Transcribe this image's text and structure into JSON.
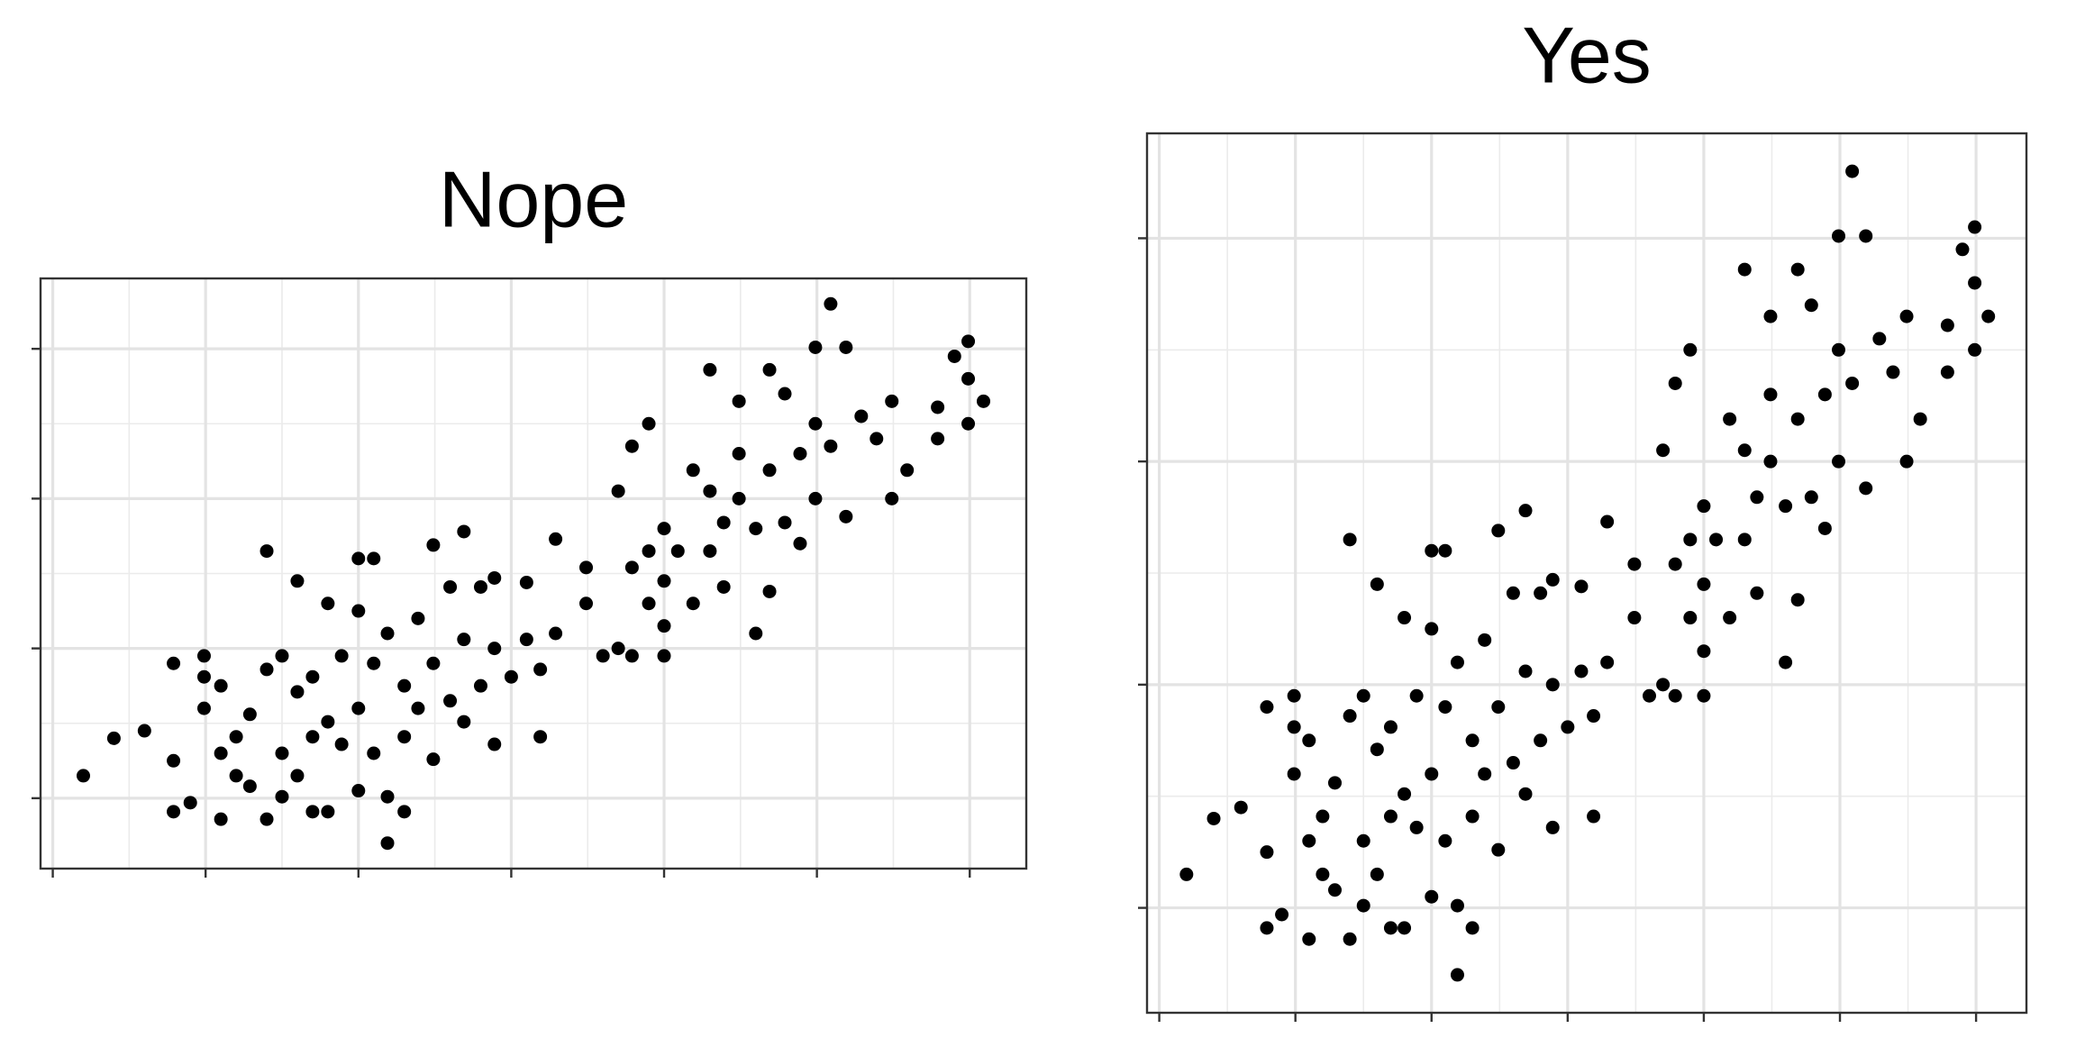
{
  "chart_data": [
    {
      "type": "scatter",
      "title": "Nope",
      "color": "#000000",
      "grid": true,
      "x": [
        0.2,
        0.4,
        0.6,
        0.79,
        0.79,
        0.79,
        0.9,
        0.99,
        0.99,
        0.99,
        1.1,
        1.1,
        1.1,
        1.2,
        1.2,
        1.29,
        1.29,
        1.4,
        1.4,
        1.4,
        1.5,
        1.5,
        1.5,
        1.6,
        1.6,
        1.6,
        1.7,
        1.7,
        1.7,
        1.8,
        1.8,
        1.8,
        1.89,
        1.89,
        2.0,
        2.0,
        2.0,
        2.0,
        2.1,
        2.1,
        2.1,
        2.19,
        2.19,
        2.19,
        2.3,
        2.3,
        2.3,
        2.39,
        2.39,
        2.49,
        2.49,
        2.49,
        2.6,
        2.6,
        2.69,
        2.69,
        2.69,
        2.8,
        2.8,
        2.89,
        2.89,
        2.89,
        3.0,
        3.1,
        3.1,
        3.19,
        3.19,
        3.29,
        3.29,
        3.49,
        3.49,
        3.6,
        3.7,
        3.7,
        3.79,
        3.79,
        3.79,
        3.9,
        3.9,
        3.9,
        4.0,
        4.0,
        4.0,
        4.0,
        4.09,
        4.19,
        4.19,
        4.3,
        4.3,
        4.3,
        4.39,
        4.39,
        4.49,
        4.49,
        4.49,
        4.6,
        4.6,
        4.69,
        4.69,
        4.69,
        4.79,
        4.79,
        4.89,
        4.89,
        4.99,
        4.99,
        4.99,
        5.09,
        5.09,
        5.19,
        5.19,
        5.29,
        5.39,
        5.49,
        5.49,
        5.59,
        5.79,
        5.79,
        5.9,
        5.99,
        5.99,
        5.99,
        6.09
      ],
      "y": [
        0.15,
        0.4,
        0.45,
        0.9,
        0.25,
        -0.09,
        -0.03,
        0.95,
        0.81,
        0.6,
        0.75,
        0.3,
        -0.14,
        0.41,
        0.15,
        0.56,
        0.08,
        1.65,
        0.86,
        -0.14,
        0.95,
        0.3,
        0.01,
        1.45,
        0.71,
        0.15,
        0.81,
        0.41,
        -0.09,
        1.3,
        0.51,
        -0.09,
        0.95,
        0.36,
        1.6,
        1.25,
        0.6,
        0.05,
        1.6,
        0.9,
        0.3,
        1.1,
        0.01,
        -0.3,
        0.75,
        0.41,
        -0.09,
        1.2,
        0.6,
        1.69,
        0.9,
        0.26,
        1.41,
        0.65,
        1.78,
        1.06,
        0.51,
        1.41,
        0.75,
        1.47,
        1.0,
        0.36,
        0.81,
        1.44,
        1.06,
        0.86,
        0.41,
        1.73,
        1.1,
        1.54,
        1.3,
        0.95,
        2.05,
        1.0,
        2.35,
        1.54,
        0.95,
        2.5,
        1.65,
        1.3,
        1.8,
        1.45,
        1.15,
        0.95,
        1.65,
        2.19,
        1.3,
        2.86,
        2.05,
        1.65,
        1.84,
        1.41,
        2.65,
        2.3,
        2.0,
        1.8,
        1.1,
        2.86,
        2.19,
        1.38,
        2.7,
        1.84,
        2.3,
        1.7,
        3.01,
        2.5,
        2.0,
        3.3,
        2.35,
        3.01,
        1.88,
        2.55,
        2.4,
        2.65,
        2.0,
        2.19,
        2.61,
        2.4,
        2.95,
        3.05,
        2.5,
        2.8,
        2.65
      ],
      "xlim": [
        -0.08,
        6.37
      ],
      "ylim": [
        -0.47,
        3.47
      ],
      "xticks": [
        0,
        1,
        2,
        3,
        4,
        5,
        6
      ],
      "yticks": [
        0,
        1,
        2,
        3
      ]
    },
    {
      "type": "scatter",
      "title": "Yes",
      "color": "#000000",
      "grid": true,
      "x": [
        0.2,
        0.4,
        0.6,
        0.79,
        0.79,
        0.79,
        0.9,
        0.99,
        0.99,
        0.99,
        1.1,
        1.1,
        1.1,
        1.2,
        1.2,
        1.29,
        1.29,
        1.4,
        1.4,
        1.4,
        1.5,
        1.5,
        1.5,
        1.6,
        1.6,
        1.6,
        1.7,
        1.7,
        1.7,
        1.8,
        1.8,
        1.8,
        1.89,
        1.89,
        2.0,
        2.0,
        2.0,
        2.0,
        2.1,
        2.1,
        2.1,
        2.19,
        2.19,
        2.19,
        2.3,
        2.3,
        2.3,
        2.39,
        2.39,
        2.49,
        2.49,
        2.49,
        2.6,
        2.6,
        2.69,
        2.69,
        2.69,
        2.8,
        2.8,
        2.89,
        2.89,
        2.89,
        3.0,
        3.1,
        3.1,
        3.19,
        3.19,
        3.29,
        3.29,
        3.49,
        3.49,
        3.6,
        3.7,
        3.7,
        3.79,
        3.79,
        3.79,
        3.9,
        3.9,
        3.9,
        4.0,
        4.0,
        4.0,
        4.0,
        4.09,
        4.19,
        4.19,
        4.3,
        4.3,
        4.3,
        4.39,
        4.39,
        4.49,
        4.49,
        4.49,
        4.6,
        4.6,
        4.69,
        4.69,
        4.69,
        4.79,
        4.79,
        4.89,
        4.89,
        4.99,
        4.99,
        4.99,
        5.09,
        5.09,
        5.19,
        5.19,
        5.29,
        5.39,
        5.49,
        5.49,
        5.59,
        5.79,
        5.79,
        5.9,
        5.99,
        5.99,
        5.99,
        6.09
      ],
      "y": [
        0.15,
        0.4,
        0.45,
        0.9,
        0.25,
        -0.09,
        -0.03,
        0.95,
        0.81,
        0.6,
        0.75,
        0.3,
        -0.14,
        0.41,
        0.15,
        0.56,
        0.08,
        1.65,
        0.86,
        -0.14,
        0.95,
        0.3,
        0.01,
        1.45,
        0.71,
        0.15,
        0.81,
        0.41,
        -0.09,
        1.3,
        0.51,
        -0.09,
        0.95,
        0.36,
        1.6,
        1.25,
        0.6,
        0.05,
        1.6,
        0.9,
        0.3,
        1.1,
        0.01,
        -0.3,
        0.75,
        0.41,
        -0.09,
        1.2,
        0.6,
        1.69,
        0.9,
        0.26,
        1.41,
        0.65,
        1.78,
        1.06,
        0.51,
        1.41,
        0.75,
        1.47,
        1.0,
        0.36,
        0.81,
        1.44,
        1.06,
        0.86,
        0.41,
        1.73,
        1.1,
        1.54,
        1.3,
        0.95,
        2.05,
        1.0,
        2.35,
        1.54,
        0.95,
        2.5,
        1.65,
        1.3,
        1.8,
        1.45,
        1.15,
        0.95,
        1.65,
        2.19,
        1.3,
        2.86,
        2.05,
        1.65,
        1.84,
        1.41,
        2.65,
        2.3,
        2.0,
        1.8,
        1.1,
        2.86,
        2.19,
        1.38,
        2.7,
        1.84,
        2.3,
        1.7,
        3.01,
        2.5,
        2.0,
        3.3,
        2.35,
        3.01,
        1.88,
        2.55,
        2.4,
        2.65,
        2.0,
        2.19,
        2.61,
        2.4,
        2.95,
        3.05,
        2.5,
        2.8,
        2.65
      ],
      "xlim": [
        -0.09,
        6.37
      ],
      "ylim": [
        -0.47,
        3.47
      ],
      "xticks": [
        0,
        1,
        2,
        3,
        4,
        5,
        6
      ],
      "yticks": [
        0,
        1,
        2,
        3
      ]
    }
  ]
}
